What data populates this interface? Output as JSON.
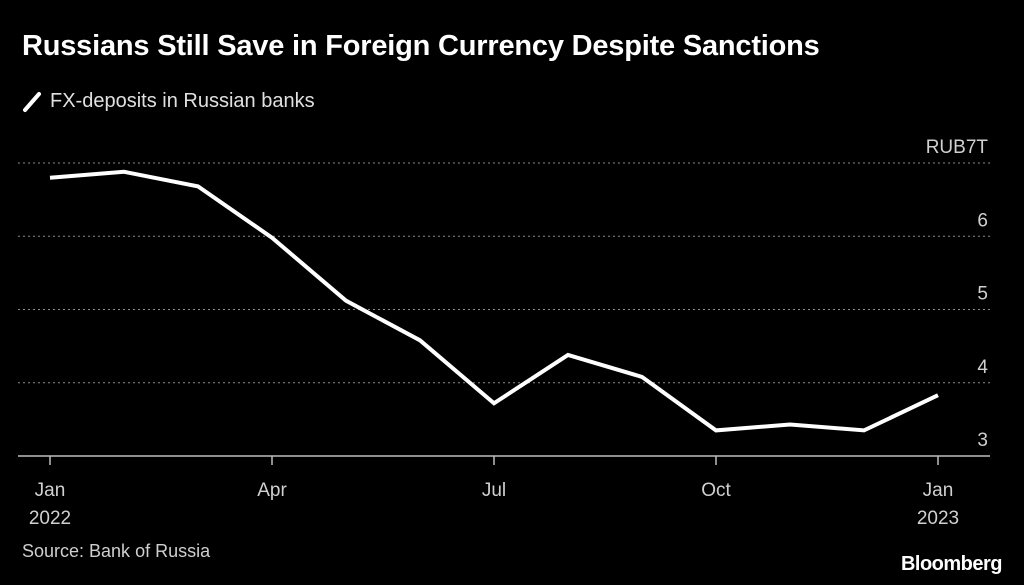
{
  "title": "Russians Still Save in Foreign Currency Despite Sanctions",
  "legend": {
    "label": "FX-deposits in Russian banks"
  },
  "source": "Source: Bank of Russia",
  "brand": "Bloomberg",
  "colors": {
    "background": "#000000",
    "line": "#ffffff",
    "grid": "#8a8a8a",
    "text": "#d0d0d0"
  },
  "chart_data": {
    "type": "line",
    "title": "Russians Still Save in Foreign Currency Despite Sanctions",
    "unit_label": "RUB7T",
    "xlabel": "",
    "ylabel": "",
    "x": [
      0,
      1,
      2,
      3,
      4,
      5,
      6,
      7,
      8,
      9,
      10,
      11,
      12
    ],
    "series": [
      {
        "name": "FX-deposits in Russian banks",
        "values": [
          6.8,
          6.88,
          6.68,
          5.98,
          5.12,
          4.58,
          3.72,
          4.38,
          4.08,
          3.35,
          3.43,
          3.35,
          3.83
        ]
      }
    ],
    "ylim": [
      2.7,
      7.0
    ],
    "yticks": [
      {
        "value": 7,
        "label": "RUB7T"
      },
      {
        "value": 6,
        "label": "6"
      },
      {
        "value": 5,
        "label": "5"
      },
      {
        "value": 4,
        "label": "4"
      },
      {
        "value": 3,
        "label": "3"
      }
    ],
    "xticks": [
      {
        "x": 0,
        "label": "Jan",
        "sublabel": "2022"
      },
      {
        "x": 3,
        "label": "Apr",
        "sublabel": ""
      },
      {
        "x": 6,
        "label": "Jul",
        "sublabel": ""
      },
      {
        "x": 9,
        "label": "Oct",
        "sublabel": ""
      },
      {
        "x": 12,
        "label": "Jan",
        "sublabel": "2023"
      }
    ],
    "grid": true,
    "legend_position": "top-left"
  }
}
